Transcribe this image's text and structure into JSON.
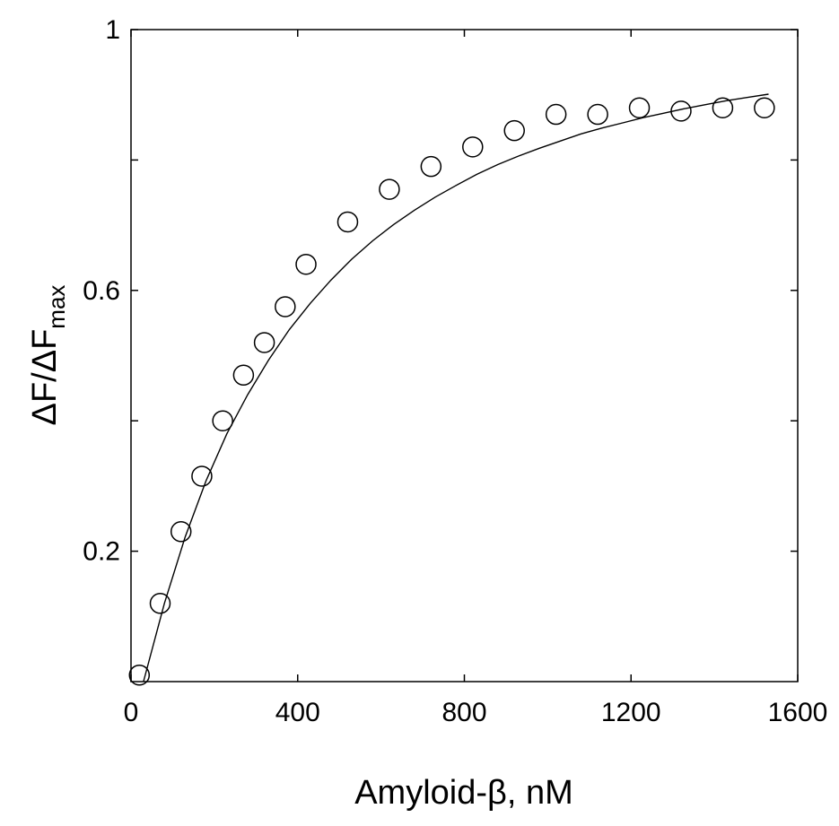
{
  "chart_data": {
    "type": "scatter",
    "xlabel": "Amyloid-β, nM",
    "ylabel": {
      "main": "ΔF/ΔF",
      "subscript": "max"
    },
    "xlim": [
      0,
      1600
    ],
    "ylim": [
      0,
      1
    ],
    "x_ticks": [
      0,
      400,
      800,
      1200,
      1600
    ],
    "x_tick_labels": [
      "0",
      "400",
      "800",
      "1200",
      "1600"
    ],
    "y_ticks": [
      0.2,
      0.6,
      1
    ],
    "y_tick_labels": [
      "0.2",
      "0.6",
      "1"
    ],
    "y_minor_ticks": [
      0.4,
      0.8
    ],
    "grid": false,
    "series": [
      {
        "kind": "points",
        "marker": "open-circle",
        "x": [
          20,
          70,
          120,
          170,
          220,
          270,
          320,
          370,
          420,
          520,
          620,
          720,
          820,
          920,
          1020,
          1120,
          1220,
          1320,
          1420,
          1520
        ],
        "y": [
          0.01,
          0.12,
          0.23,
          0.315,
          0.4,
          0.47,
          0.52,
          0.575,
          0.64,
          0.705,
          0.755,
          0.79,
          0.82,
          0.845,
          0.87,
          0.87,
          0.88,
          0.875,
          0.88,
          0.88
        ]
      },
      {
        "kind": "fit-line",
        "x": [
          30,
          80,
          130,
          180,
          230,
          280,
          330,
          380,
          430,
          480,
          530,
          580,
          630,
          680,
          730,
          780,
          830,
          880,
          930,
          980,
          1030,
          1080,
          1130,
          1180,
          1230,
          1280,
          1330,
          1380,
          1430,
          1480,
          1530
        ],
        "y": [
          0.0,
          0.12,
          0.222,
          0.308,
          0.38,
          0.44,
          0.493,
          0.54,
          0.58,
          0.616,
          0.648,
          0.676,
          0.701,
          0.723,
          0.743,
          0.761,
          0.778,
          0.793,
          0.806,
          0.818,
          0.829,
          0.84,
          0.849,
          0.857,
          0.865,
          0.872,
          0.879,
          0.885,
          0.891,
          0.896,
          0.901
        ]
      }
    ]
  }
}
